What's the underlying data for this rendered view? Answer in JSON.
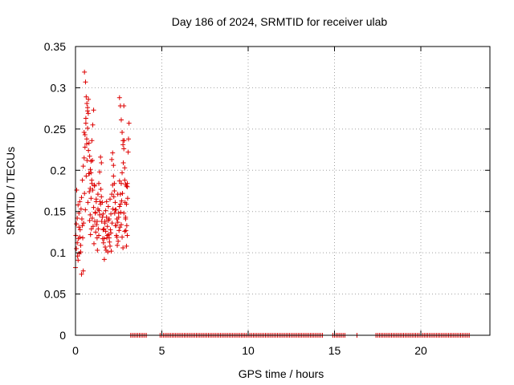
{
  "chart_data": {
    "type": "scatter",
    "title": "Day 186 of 2024, SRMTID for receiver ulab",
    "xlabel": "GPS time / hours",
    "ylabel": "SRMTID / TECUs",
    "xlim": [
      0,
      24
    ],
    "ylim": [
      0,
      0.35
    ],
    "x_ticks": [
      0,
      5,
      10,
      15,
      20
    ],
    "x_tick_labels": [
      "0",
      "5",
      "10",
      "15",
      "20"
    ],
    "y_ticks": [
      0,
      0.05,
      0.1,
      0.15,
      0.2,
      0.25,
      0.3,
      0.35
    ],
    "y_tick_labels": [
      "0",
      "0.05",
      "0.1",
      "0.15",
      "0.2",
      "0.25",
      "0.3",
      "0.35"
    ],
    "grid": true,
    "marker": "plus",
    "marker_color": "#dd0000",
    "series": [
      {
        "name": "SRMTID",
        "x": [
          0.0,
          0.02,
          0.05,
          0.07,
          0.1,
          0.12,
          0.15,
          0.17,
          0.2,
          0.22,
          0.25,
          0.27,
          0.3,
          0.32,
          0.35,
          0.37,
          0.4,
          0.42,
          0.45,
          0.47,
          0.5,
          0.52,
          0.55,
          0.57,
          0.6,
          0.62,
          0.65,
          0.67,
          0.7,
          0.72,
          0.75,
          0.77,
          0.8,
          0.82,
          0.85,
          0.87,
          0.9,
          0.92,
          0.95,
          0.97,
          1.0,
          1.02,
          1.05,
          1.07,
          1.1,
          1.12,
          1.15,
          1.17,
          1.2,
          1.22,
          1.25,
          1.27,
          1.3,
          1.32,
          1.35,
          1.37,
          1.4,
          1.42,
          1.45,
          1.47,
          1.5,
          1.52,
          1.55,
          1.57,
          1.6,
          1.62,
          1.65,
          1.67,
          1.7,
          1.72,
          1.75,
          1.77,
          1.8,
          1.82,
          1.85,
          1.87,
          1.9,
          1.92,
          1.95,
          1.97,
          2.0,
          2.02,
          2.05,
          2.07,
          2.1,
          2.12,
          2.15,
          2.17,
          2.2,
          2.22,
          2.25,
          2.27,
          2.3,
          2.32,
          2.35,
          2.37,
          2.4,
          2.42,
          2.45,
          2.47,
          2.5,
          2.52,
          2.55,
          2.57,
          2.6,
          2.62,
          2.65,
          2.67,
          2.7,
          2.72,
          2.75,
          2.77,
          2.8,
          2.82,
          2.85,
          2.87,
          2.9,
          2.92,
          2.95,
          2.97,
          3.0,
          3.02,
          3.05,
          3.07,
          3.1,
          0.05,
          0.1,
          0.15,
          0.2,
          0.25,
          0.3,
          0.35,
          0.4,
          0.45,
          0.5,
          0.55,
          0.6,
          0.65,
          0.7,
          0.75,
          0.8,
          0.85,
          0.9,
          0.95,
          1.0,
          1.05,
          1.1,
          1.15,
          1.2,
          1.25,
          1.3,
          1.35,
          1.4,
          1.45,
          1.5,
          1.55,
          1.6,
          1.65,
          1.7,
          1.75,
          1.8,
          1.85,
          1.9,
          1.95,
          2.0,
          2.05,
          2.1,
          2.15,
          2.2,
          2.25,
          2.3,
          2.35,
          2.4,
          2.45,
          2.5,
          2.55,
          2.6,
          2.65,
          2.7,
          2.75,
          2.8,
          2.85,
          2.9,
          2.95,
          3.0,
          0.52,
          0.58,
          0.62,
          0.66,
          0.7,
          0.74,
          0.78,
          0.82,
          0.86,
          0.9,
          0.94,
          0.98,
          2.55,
          2.6,
          2.65,
          2.7,
          2.75,
          2.8,
          2.85,
          2.9,
          2.95,
          3.0
        ],
        "y": [
          0.082,
          0.121,
          0.105,
          0.176,
          0.142,
          0.096,
          0.158,
          0.117,
          0.131,
          0.099,
          0.162,
          0.128,
          0.109,
          0.153,
          0.074,
          0.141,
          0.188,
          0.118,
          0.205,
          0.136,
          0.246,
          0.172,
          0.228,
          0.152,
          0.263,
          0.193,
          0.238,
          0.212,
          0.272,
          0.161,
          0.286,
          0.196,
          0.174,
          0.139,
          0.146,
          0.122,
          0.166,
          0.129,
          0.184,
          0.142,
          0.176,
          0.132,
          0.155,
          0.111,
          0.181,
          0.138,
          0.148,
          0.125,
          0.162,
          0.134,
          0.118,
          0.103,
          0.171,
          0.129,
          0.184,
          0.151,
          0.198,
          0.162,
          0.216,
          0.177,
          0.209,
          0.138,
          0.161,
          0.117,
          0.147,
          0.112,
          0.129,
          0.092,
          0.138,
          0.107,
          0.126,
          0.103,
          0.143,
          0.118,
          0.132,
          0.101,
          0.156,
          0.122,
          0.141,
          0.113,
          0.165,
          0.128,
          0.147,
          0.102,
          0.171,
          0.136,
          0.182,
          0.153,
          0.193,
          0.168,
          0.175,
          0.148,
          0.161,
          0.133,
          0.152,
          0.121,
          0.141,
          0.109,
          0.137,
          0.114,
          0.148,
          0.127,
          0.156,
          0.131,
          0.171,
          0.149,
          0.184,
          0.163,
          0.197,
          0.172,
          0.231,
          0.209,
          0.278,
          0.236,
          0.188,
          0.161,
          0.143,
          0.127,
          0.159,
          0.133,
          0.184,
          0.166,
          0.222,
          0.238,
          0.257,
          0.135,
          0.112,
          0.091,
          0.148,
          0.119,
          0.101,
          0.167,
          0.133,
          0.078,
          0.215,
          0.243,
          0.257,
          0.232,
          0.251,
          0.224,
          0.196,
          0.178,
          0.211,
          0.236,
          0.255,
          0.273,
          0.182,
          0.149,
          0.165,
          0.138,
          0.153,
          0.121,
          0.146,
          0.159,
          0.168,
          0.143,
          0.128,
          0.117,
          0.136,
          0.151,
          0.162,
          0.121,
          0.139,
          0.118,
          0.108,
          0.124,
          0.213,
          0.221,
          0.206,
          0.184,
          0.152,
          0.133,
          0.119,
          0.171,
          0.143,
          0.187,
          0.159,
          0.134,
          0.119,
          0.106,
          0.148,
          0.126,
          0.141,
          0.108,
          0.121,
          0.319,
          0.307,
          0.289,
          0.281,
          0.276,
          0.269,
          0.233,
          0.217,
          0.201,
          0.197,
          0.188,
          0.212,
          0.288,
          0.278,
          0.261,
          0.246,
          0.236,
          0.226,
          0.203,
          0.183,
          0.181,
          0.18
        ],
        "x_zero": [
          3.2,
          3.3,
          3.4,
          3.5,
          3.6,
          3.7,
          3.8,
          3.9,
          4.0,
          4.1,
          4.9,
          5.0,
          5.1,
          5.2,
          5.3,
          5.4,
          5.5,
          5.6,
          5.7,
          5.8,
          5.9,
          6.0,
          6.1,
          6.2,
          6.3,
          6.4,
          6.5,
          6.6,
          6.7,
          6.8,
          6.9,
          7.0,
          7.1,
          7.2,
          7.3,
          7.4,
          7.5,
          7.6,
          7.7,
          7.8,
          7.9,
          8.0,
          8.1,
          8.2,
          8.3,
          8.4,
          8.5,
          8.6,
          8.7,
          8.8,
          8.9,
          9.0,
          9.1,
          9.2,
          9.3,
          9.4,
          9.5,
          9.6,
          9.7,
          9.8,
          9.9,
          10.0,
          10.1,
          10.2,
          10.3,
          10.4,
          10.5,
          10.6,
          10.7,
          10.8,
          10.9,
          11.0,
          11.1,
          11.2,
          11.3,
          11.4,
          11.5,
          11.6,
          11.7,
          11.8,
          11.9,
          12.0,
          12.1,
          12.2,
          12.3,
          12.4,
          12.5,
          12.6,
          12.7,
          12.8,
          12.9,
          13.0,
          13.1,
          13.2,
          13.3,
          13.4,
          13.5,
          13.6,
          13.7,
          13.8,
          13.9,
          14.0,
          14.1,
          14.2,
          14.3,
          14.9,
          15.0,
          15.1,
          15.2,
          15.3,
          15.4,
          15.5,
          15.6,
          16.3,
          17.4,
          17.5,
          17.6,
          17.7,
          17.8,
          17.9,
          18.0,
          18.1,
          18.2,
          18.3,
          18.4,
          18.5,
          18.6,
          18.7,
          18.8,
          18.9,
          19.0,
          19.1,
          19.2,
          19.3,
          19.4,
          19.5,
          19.6,
          19.7,
          19.8,
          19.9,
          20.0,
          20.1,
          20.2,
          20.3,
          20.4,
          20.5,
          20.6,
          20.7,
          20.8,
          20.9,
          21.0,
          21.1,
          21.2,
          21.3,
          21.4,
          21.5,
          21.6,
          21.7,
          21.8,
          21.9,
          22.0,
          22.1,
          22.2,
          22.3,
          22.4,
          22.5,
          22.6,
          22.7,
          22.8
        ]
      }
    ]
  }
}
